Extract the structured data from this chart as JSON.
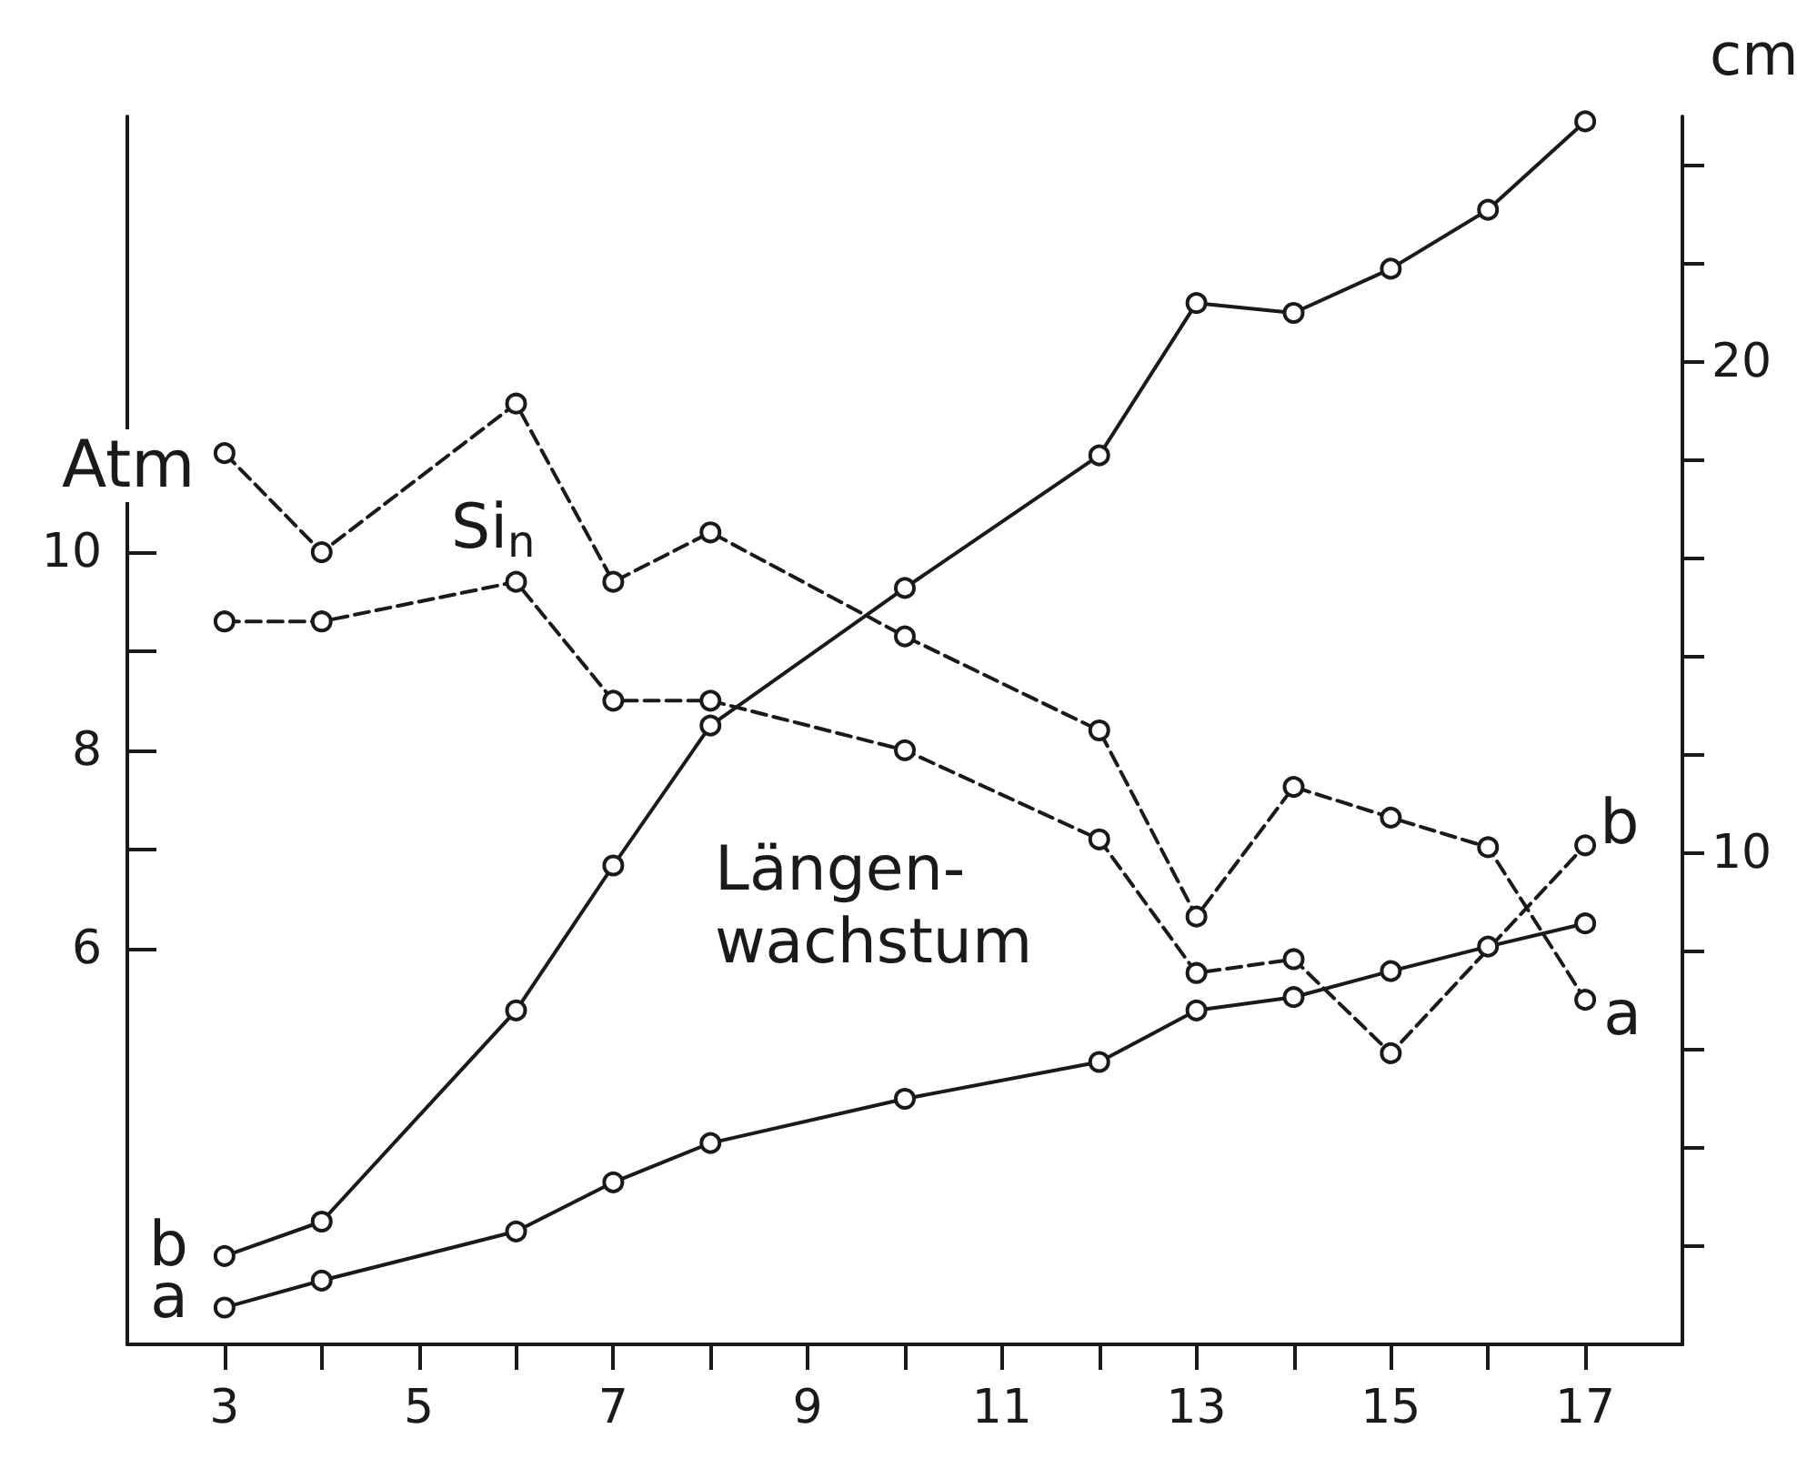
{
  "chart_data": {
    "type": "line",
    "ylabel": "Atm",
    "y2label": "cm",
    "xlim": [
      2,
      18
    ],
    "xticks": [
      3,
      {
        "value": 4,
        "label": null
      },
      5,
      {
        "value": 6,
        "label": null
      },
      7,
      {
        "value": 8,
        "label": null
      },
      9,
      {
        "value": 10,
        "label": null
      },
      11,
      {
        "value": 12,
        "label": null
      },
      13,
      {
        "value": 14,
        "label": null
      },
      15,
      {
        "value": 16,
        "label": null
      },
      17
    ],
    "ylim": [
      2,
      14.4
    ],
    "yticks": [
      6,
      {
        "value": 7,
        "label": null
      },
      8,
      {
        "value": 9,
        "label": null
      },
      10
    ],
    "y2lim": [
      0,
      25
    ],
    "y2ticks": [
      {
        "value": 2,
        "label": null
      },
      {
        "value": 4,
        "label": null
      },
      {
        "value": 6,
        "label": null
      },
      {
        "value": 8,
        "label": null
      },
      10,
      {
        "value": 12,
        "label": null
      },
      {
        "value": 14,
        "label": null
      },
      {
        "value": 16,
        "label": null
      },
      {
        "value": 18,
        "label": null
      },
      20,
      {
        "value": 22,
        "label": null
      },
      {
        "value": 24,
        "label": null
      }
    ],
    "marker": "circle",
    "grid": false,
    "series": [
      {
        "name": "b",
        "color": "#1a1a1a",
        "axis": "y2",
        "line_style": "solid",
        "x": [
          3,
          4,
          6,
          7,
          8,
          10,
          12,
          13,
          14,
          15,
          16,
          17
        ],
        "values": [
          1.8,
          2.5,
          6.8,
          9.75,
          12.6,
          15.4,
          18.1,
          21.2,
          21.0,
          21.9,
          23.1,
          24.9
        ]
      },
      {
        "name": "a",
        "color": "#1a1a1a",
        "axis": "y2",
        "line_style": "solid",
        "x": [
          3,
          4,
          6,
          7,
          8,
          10,
          12,
          13,
          14,
          15,
          16,
          17
        ],
        "values": [
          0.75,
          1.3,
          2.3,
          3.3,
          4.1,
          5.0,
          5.75,
          6.8,
          7.07,
          7.6,
          8.1,
          8.57
        ]
      },
      {
        "name": "a",
        "color": "#1a1a1a",
        "line_style": "dashed",
        "x": [
          3,
          4,
          6,
          7,
          8,
          10,
          12,
          13,
          14,
          15,
          16,
          17
        ],
        "values": [
          11.0,
          10.0,
          11.5,
          9.7,
          10.2,
          9.15,
          8.2,
          6.32,
          7.63,
          7.32,
          7.02,
          5.48
        ]
      },
      {
        "name": "b",
        "color": "#1a1a1a",
        "line_style": "dashed",
        "x": [
          3,
          4,
          6,
          7,
          8,
          10,
          12,
          13,
          14,
          15,
          17
        ],
        "values": [
          9.3,
          9.3,
          9.7,
          8.5,
          8.5,
          8.0,
          7.1,
          5.75,
          5.89,
          4.94,
          7.04
        ]
      }
    ],
    "annotations": [
      "Si$_{n}$",
      "Längen-\nwachstum"
    ]
  }
}
